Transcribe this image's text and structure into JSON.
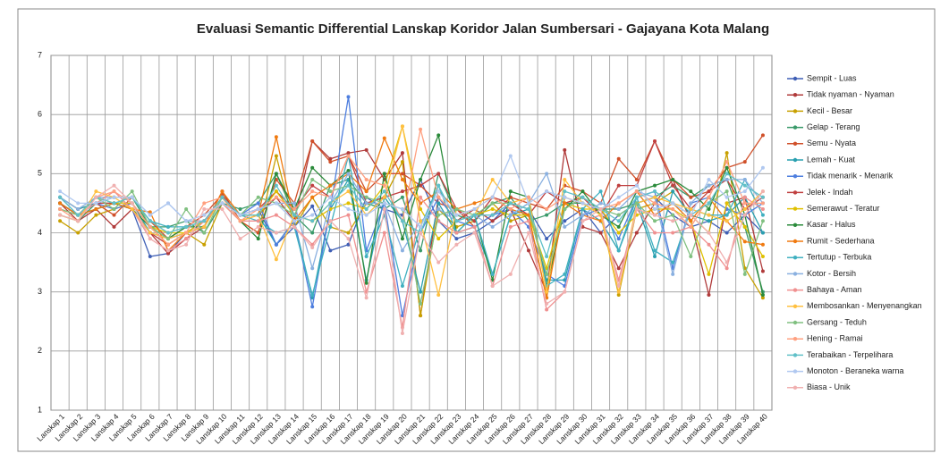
{
  "chart_data": {
    "type": "line",
    "title": "Evaluasi  Semantic  Differential  Lanskap  Koridor  Jalan  Sumbersari  - Gajayana  Kota  Malang",
    "categories": [
      "Lanskap 1",
      "Lanskap 2",
      "Lanskap 3",
      "Lanskap 4",
      "Lanskap 5",
      "Lanskap 6",
      "Lanskap 7",
      "Lanskap 8",
      "Lanskap 9",
      "Lanskap 10",
      "Lanskap 11",
      "Lanskap 12",
      "Lanskap 13",
      "Lanskap 14",
      "Lanskap 15",
      "Lanskap 16",
      "Lanskap 17",
      "Lanskap 18",
      "Lanskap 19",
      "Lanskap 20",
      "Lanskap 21",
      "Lanskap 22",
      "Lanskap 23",
      "Lanskap 24",
      "Lanskap 25",
      "Lanskap 26",
      "Lanskap 27",
      "Lanskap 28",
      "Lanskap 29",
      "Lanskap 30",
      "Lanskap 31",
      "Lanskap 32",
      "Lanskap 33",
      "Lanskap 34",
      "Lanskap 35",
      "Lanskap 36",
      "Lanskap 37",
      "Lanskap 38",
      "Lanskap 39",
      "Lanskap 40"
    ],
    "ylim": [
      1,
      7
    ],
    "yticks": [
      1,
      2,
      3,
      4,
      5,
      6,
      7
    ],
    "grid": true,
    "legend": "right",
    "series": [
      {
        "name": "Sempit - Luas",
        "color": "#3f5fb5",
        "values": [
          4.5,
          4.3,
          4.4,
          4.5,
          4.4,
          3.6,
          3.65,
          4.0,
          4.1,
          4.6,
          4.3,
          4.4,
          3.8,
          4.1,
          4.45,
          3.7,
          3.8,
          4.6,
          4.4,
          4.3,
          4.9,
          4.2,
          3.9,
          4.0,
          4.2,
          4.5,
          4.4,
          3.9,
          4.2,
          4.4,
          4.0,
          4.3,
          4.5,
          4.6,
          4.3,
          4.1,
          4.2,
          4.0,
          4.3,
          4.0
        ]
      },
      {
        "name": "Tidak nyaman - Nyaman",
        "color": "#b03a3a",
        "values": [
          4.5,
          4.2,
          4.4,
          4.1,
          4.4,
          4.0,
          3.65,
          3.9,
          4.1,
          4.7,
          4.2,
          4.3,
          4.6,
          4.2,
          5.55,
          5.25,
          5.35,
          5.4,
          4.9,
          5.35,
          2.6,
          4.6,
          4.2,
          4.4,
          4.2,
          4.4,
          3.7,
          3.0,
          5.4,
          4.1,
          4.0,
          3.4,
          4.0,
          4.5,
          4.9,
          4.2,
          2.95,
          4.5,
          4.6,
          3.35
        ]
      },
      {
        "name": "Kecil - Besar",
        "color": "#c8a000",
        "values": [
          4.2,
          4.0,
          4.3,
          4.4,
          4.5,
          4.1,
          3.8,
          4.0,
          3.8,
          4.5,
          4.2,
          4.0,
          5.3,
          4.1,
          4.6,
          4.1,
          4.0,
          4.5,
          4.6,
          5.2,
          2.6,
          4.4,
          4.1,
          4.2,
          4.5,
          4.2,
          4.3,
          2.9,
          4.6,
          4.5,
          4.3,
          2.95,
          4.4,
          4.5,
          4.7,
          4.3,
          4.0,
          5.35,
          3.4,
          2.9
        ]
      },
      {
        "name": "Gelap - Terang",
        "color": "#3a9a6a",
        "values": [
          4.3,
          4.2,
          4.5,
          4.6,
          4.6,
          4.1,
          4.1,
          4.2,
          4.0,
          4.5,
          4.4,
          4.5,
          5.0,
          4.3,
          4.0,
          4.8,
          4.9,
          4.5,
          4.4,
          4.6,
          3.7,
          5.0,
          4.3,
          4.2,
          4.5,
          4.6,
          4.2,
          4.3,
          4.5,
          4.5,
          4.4,
          4.4,
          4.5,
          4.6,
          4.8,
          4.6,
          4.8,
          4.9,
          4.1,
          3.0
        ]
      },
      {
        "name": "Semu - Nyata",
        "color": "#d0502a",
        "values": [
          4.6,
          4.4,
          4.5,
          4.3,
          4.6,
          4.2,
          3.9,
          4.1,
          4.3,
          4.65,
          4.2,
          4.0,
          4.9,
          4.5,
          5.55,
          5.2,
          5.3,
          4.7,
          5.0,
          5.0,
          4.8,
          4.5,
          4.4,
          4.1,
          4.3,
          4.6,
          4.5,
          4.4,
          4.8,
          4.7,
          4.5,
          5.25,
          4.9,
          5.55,
          4.9,
          4.6,
          4.7,
          5.1,
          5.2,
          5.65
        ]
      },
      {
        "name": "Lemah - Kuat",
        "color": "#2aa0b0",
        "values": [
          4.6,
          4.4,
          4.5,
          4.5,
          4.5,
          4.0,
          3.9,
          4.0,
          4.2,
          4.6,
          4.3,
          4.3,
          3.8,
          4.2,
          2.9,
          4.4,
          4.9,
          3.2,
          4.6,
          4.2,
          3.0,
          4.5,
          4.0,
          4.1,
          3.3,
          4.3,
          4.4,
          3.2,
          3.2,
          4.4,
          4.2,
          3.7,
          4.5,
          3.6,
          4.7,
          4.3,
          4.2,
          4.3,
          4.6,
          4.0
        ]
      },
      {
        "name": "Tidak menarik - Menarik",
        "color": "#4f7fdf",
        "values": [
          4.5,
          4.3,
          4.5,
          4.4,
          4.5,
          4.1,
          3.9,
          4.0,
          4.1,
          4.6,
          4.3,
          4.5,
          3.8,
          4.2,
          2.75,
          4.4,
          6.3,
          3.7,
          4.5,
          2.6,
          4.0,
          4.6,
          4.2,
          4.1,
          4.3,
          4.4,
          4.1,
          3.3,
          3.1,
          4.3,
          4.4,
          3.9,
          4.6,
          4.7,
          3.4,
          4.5,
          4.6,
          4.4,
          4.3,
          4.5
        ]
      },
      {
        "name": "Jelek - Indah",
        "color": "#c04040",
        "values": [
          4.5,
          4.3,
          4.5,
          4.5,
          4.4,
          4.0,
          3.8,
          4.0,
          4.2,
          4.6,
          4.3,
          4.4,
          4.7,
          4.4,
          4.8,
          4.6,
          5.3,
          4.5,
          4.6,
          4.7,
          4.8,
          5.0,
          4.4,
          4.2,
          4.6,
          4.5,
          4.3,
          4.7,
          4.5,
          4.6,
          4.3,
          4.8,
          4.8,
          5.55,
          4.8,
          4.4,
          4.7,
          4.9,
          4.4,
          4.6
        ]
      },
      {
        "name": "Semerawut - Teratur",
        "color": "#e0c000",
        "values": [
          4.4,
          4.3,
          4.6,
          4.5,
          4.5,
          4.1,
          4.0,
          4.0,
          4.2,
          4.6,
          4.3,
          4.3,
          4.7,
          4.3,
          4.2,
          4.4,
          4.5,
          4.4,
          4.8,
          5.8,
          4.4,
          3.9,
          4.2,
          4.3,
          4.4,
          4.3,
          4.3,
          3.4,
          4.5,
          4.4,
          4.4,
          4.0,
          4.3,
          4.4,
          4.4,
          4.2,
          3.3,
          4.5,
          4.1,
          3.6
        ]
      },
      {
        "name": "Kasar - Halus",
        "color": "#2a8a3a",
        "values": [
          4.5,
          4.3,
          4.4,
          4.5,
          4.4,
          4.1,
          3.9,
          4.1,
          4.1,
          4.6,
          4.2,
          3.9,
          5.0,
          4.4,
          5.1,
          4.8,
          5.05,
          3.15,
          5.0,
          3.9,
          4.9,
          5.65,
          4.0,
          4.3,
          3.2,
          4.7,
          4.6,
          3.1,
          4.4,
          4.7,
          4.3,
          4.1,
          4.7,
          4.8,
          4.9,
          4.7,
          4.4,
          5.1,
          4.3,
          2.95
        ]
      },
      {
        "name": "Rumit - Sederhana",
        "color": "#f07a10",
        "values": [
          4.5,
          4.3,
          4.4,
          4.5,
          4.4,
          4.35,
          3.7,
          4.0,
          4.1,
          4.7,
          4.3,
          4.3,
          5.62,
          4.2,
          4.6,
          4.8,
          5.0,
          4.7,
          5.6,
          4.9,
          4.5,
          4.7,
          4.4,
          4.5,
          4.6,
          4.4,
          4.3,
          2.9,
          4.5,
          4.3,
          4.2,
          4.5,
          4.7,
          4.3,
          4.5,
          4.2,
          4.6,
          4.2,
          3.85,
          3.8
        ]
      },
      {
        "name": "Tertutup - Terbuka",
        "color": "#40b0c0",
        "values": [
          4.6,
          4.3,
          4.5,
          4.6,
          4.6,
          4.2,
          4.1,
          4.1,
          4.2,
          4.5,
          4.3,
          4.2,
          4.0,
          4.1,
          2.95,
          4.1,
          5.3,
          3.6,
          4.3,
          3.1,
          4.1,
          4.8,
          4.0,
          4.3,
          3.3,
          4.3,
          4.5,
          3.1,
          3.3,
          4.4,
          4.7,
          3.7,
          4.6,
          3.7,
          3.5,
          4.4,
          4.3,
          4.3,
          4.9,
          4.3
        ]
      },
      {
        "name": "Kotor - Bersih",
        "color": "#8ab0e0",
        "values": [
          4.6,
          4.4,
          4.6,
          4.6,
          4.6,
          4.3,
          4.5,
          4.2,
          4.2,
          4.6,
          4.3,
          4.4,
          4.5,
          4.5,
          3.4,
          4.5,
          5.0,
          4.5,
          4.5,
          3.7,
          4.2,
          4.4,
          4.2,
          4.3,
          4.1,
          4.3,
          4.5,
          5.0,
          4.1,
          4.3,
          4.5,
          4.4,
          4.7,
          4.6,
          3.3,
          4.5,
          4.8,
          4.9,
          4.9,
          4.5
        ]
      },
      {
        "name": "Bahaya - Aman",
        "color": "#f09090",
        "values": [
          4.4,
          4.3,
          4.5,
          4.7,
          4.4,
          3.9,
          3.7,
          3.9,
          4.2,
          4.5,
          4.2,
          4.2,
          4.3,
          4.1,
          3.8,
          4.2,
          4.3,
          3.0,
          4.0,
          2.4,
          4.6,
          4.2,
          4.0,
          4.1,
          3.1,
          4.1,
          4.2,
          2.7,
          3.0,
          4.2,
          4.3,
          3.2,
          4.4,
          4.0,
          4.0,
          4.1,
          3.8,
          3.4,
          4.6,
          4.4
        ]
      },
      {
        "name": "Membosankan - Menyenangkan",
        "color": "#ffc040",
        "values": [
          4.3,
          4.2,
          4.7,
          4.6,
          4.4,
          4.0,
          3.9,
          4.0,
          4.1,
          4.6,
          4.2,
          4.3,
          3.55,
          4.3,
          4.2,
          4.5,
          4.7,
          4.3,
          4.6,
          5.8,
          4.2,
          2.95,
          4.4,
          4.3,
          4.9,
          4.5,
          4.6,
          3.0,
          4.9,
          4.5,
          4.3,
          3.0,
          4.5,
          4.6,
          4.5,
          4.4,
          4.3,
          4.2,
          4.4,
          4.7
        ]
      },
      {
        "name": "Gersang - Teduh",
        "color": "#80c080",
        "values": [
          4.4,
          4.3,
          4.6,
          4.4,
          4.7,
          4.1,
          3.9,
          4.4,
          4.0,
          4.6,
          4.3,
          4.6,
          4.5,
          4.3,
          4.9,
          4.7,
          4.8,
          4.6,
          4.5,
          4.4,
          2.8,
          4.3,
          4.4,
          4.3,
          4.5,
          4.5,
          4.4,
          3.3,
          4.4,
          4.6,
          4.4,
          4.3,
          4.5,
          4.2,
          4.3,
          3.6,
          4.5,
          4.7,
          3.3,
          4.2
        ]
      },
      {
        "name": "Hening - Ramai",
        "color": "#ffa080",
        "values": [
          4.4,
          4.2,
          4.6,
          4.7,
          4.5,
          4.1,
          3.8,
          4.0,
          4.5,
          4.6,
          4.2,
          4.4,
          4.6,
          4.4,
          4.7,
          4.6,
          5.3,
          4.9,
          4.8,
          4.2,
          5.75,
          4.6,
          4.3,
          4.4,
          4.6,
          4.4,
          4.6,
          4.4,
          4.6,
          4.5,
          4.4,
          4.5,
          4.7,
          4.5,
          4.4,
          4.1,
          4.6,
          5.2,
          4.5,
          4.5
        ]
      },
      {
        "name": "Terabaikan - Terpelihara",
        "color": "#60c0c8",
        "values": [
          4.6,
          4.3,
          4.6,
          4.5,
          4.6,
          4.2,
          4.0,
          4.1,
          4.2,
          4.6,
          4.3,
          4.3,
          4.8,
          4.3,
          4.2,
          4.5,
          4.8,
          4.4,
          4.7,
          4.2,
          4.0,
          4.8,
          4.2,
          4.3,
          4.3,
          4.5,
          4.4,
          3.6,
          4.7,
          4.6,
          4.4,
          4.2,
          4.6,
          4.7,
          4.5,
          4.3,
          4.5,
          5.0,
          4.8,
          4.6
        ]
      },
      {
        "name": "Monoton - Beraneka warna",
        "color": "#b0c8f0",
        "values": [
          4.7,
          4.5,
          4.5,
          4.6,
          4.6,
          4.3,
          4.5,
          4.2,
          4.3,
          4.5,
          4.3,
          4.4,
          4.5,
          4.2,
          4.3,
          4.6,
          4.4,
          4.3,
          4.5,
          4.4,
          4.1,
          4.7,
          4.3,
          4.4,
          4.6,
          5.3,
          4.5,
          4.7,
          4.6,
          4.5,
          4.4,
          4.6,
          4.8,
          4.4,
          4.5,
          4.3,
          4.9,
          4.6,
          4.7,
          5.1
        ]
      },
      {
        "name": "Biasa - Unik",
        "color": "#f0b0b0",
        "values": [
          4.3,
          4.2,
          4.6,
          4.8,
          4.5,
          3.9,
          3.7,
          3.8,
          4.4,
          4.4,
          3.9,
          4.1,
          4.0,
          4.1,
          3.75,
          4.2,
          3.9,
          2.9,
          4.4,
          2.3,
          4.0,
          3.5,
          3.8,
          4.0,
          3.1,
          3.3,
          4.0,
          2.8,
          3.0,
          4.2,
          4.4,
          3.1,
          4.4,
          4.3,
          4.2,
          4.3,
          4.0,
          3.5,
          4.3,
          4.7
        ]
      }
    ]
  }
}
